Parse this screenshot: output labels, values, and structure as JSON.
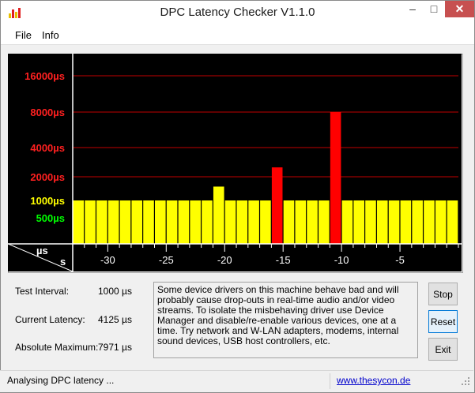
{
  "window": {
    "title": "DPC Latency Checker V1.1.0",
    "app_icon": "bar-chart-icon",
    "controls": {
      "minimize": "–",
      "maximize": "□",
      "close": "✕"
    }
  },
  "menu": {
    "file": "File",
    "info": "Info"
  },
  "chart_data": {
    "type": "bar",
    "y_tick_labels": [
      {
        "label": "16000µs",
        "value": 16000,
        "color": "#ff2020"
      },
      {
        "label": "8000µs",
        "value": 8000,
        "color": "#ff2020"
      },
      {
        "label": "4000µs",
        "value": 4000,
        "color": "#ff2020"
      },
      {
        "label": "2000µs",
        "value": 2000,
        "color": "#ff2020"
      },
      {
        "label": "1000µs",
        "value": 1000,
        "color": "#ffff00"
      },
      {
        "label": "500µs",
        "value": 500,
        "color": "#00ff00"
      }
    ],
    "y_axis_unit": "µs",
    "x_axis_unit": "s",
    "x_tick_labels": [
      "-30",
      "-25",
      "-20",
      "-15",
      "-10",
      "-5"
    ],
    "x_ticks": [
      -30,
      -25,
      -20,
      -15,
      -10,
      -5
    ],
    "x_range": [
      -33,
      0
    ],
    "bar_times": [
      -32.5,
      -31.5,
      -30.5,
      -29.5,
      -28.5,
      -27.5,
      -26.5,
      -25.5,
      -24.5,
      -23.5,
      -22.5,
      -21.5,
      -20.5,
      -19.5,
      -18.5,
      -17.5,
      -16.5,
      -15.5,
      -14.5,
      -13.5,
      -12.5,
      -11.5,
      -10.5,
      -9.5,
      -8.5,
      -7.5,
      -6.5,
      -5.5,
      -4.5,
      -3.5,
      -2.5,
      -1.5,
      -0.5
    ],
    "values": [
      1000,
      1000,
      1000,
      1000,
      1000,
      1000,
      1000,
      1000,
      1000,
      1000,
      1000,
      1000,
      1500,
      1000,
      1000,
      1000,
      1000,
      2500,
      1000,
      1000,
      1000,
      1000,
      8000,
      1000,
      1000,
      1000,
      1000,
      1000,
      1000,
      1000,
      1000,
      1000,
      1000
    ],
    "colors": {
      "normal": "#ffff00",
      "warning": "#ffff00",
      "danger": "#ff0000",
      "background": "#000000",
      "grid": "#c00000"
    }
  },
  "stats": {
    "test_interval_label": "Test Interval:",
    "test_interval_value": "1000 µs",
    "current_latency_label": "Current Latency:",
    "current_latency_value": "4125 µs",
    "absolute_max_label": "Absolute Maximum:",
    "absolute_max_value": "7971 µs"
  },
  "description": "Some device drivers on this machine behave bad and will probably cause drop-outs in real-time audio and/or video streams. To isolate the misbehaving driver use Device Manager and disable/re-enable various devices, one at a time. Try network and W-LAN adapters, modems, internal sound devices, USB host controllers, etc.",
  "buttons": {
    "stop": "Stop",
    "reset": "Reset",
    "exit": "Exit"
  },
  "status": {
    "text": "Analysing DPC latency ...",
    "link": "www.thesycon.de"
  }
}
